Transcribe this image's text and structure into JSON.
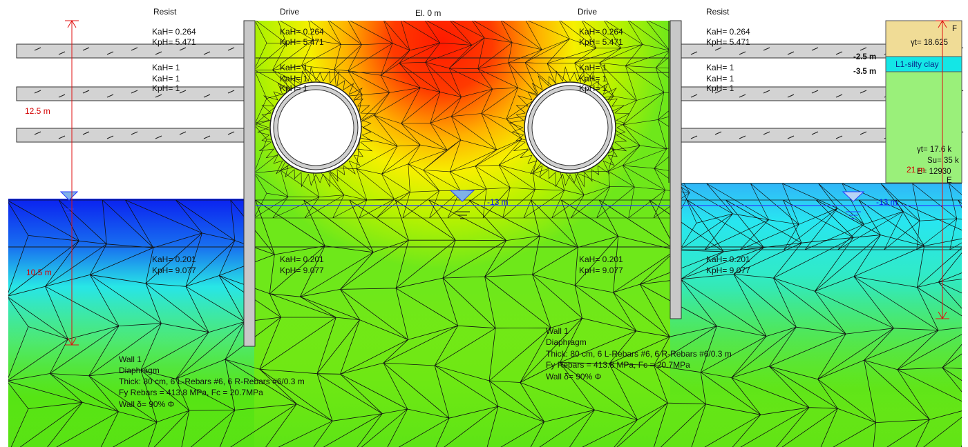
{
  "colors": {
    "hot": "#ff1a00",
    "warm": "#ffd200",
    "mid": "#9cf000",
    "green": "#46dc14",
    "cyan": "#28e6e6",
    "blue": "#0a1ef0",
    "wall": "#c8c8c8",
    "dimension": "#e01010",
    "waterline": "#2a3dff",
    "soil_tan": "#f0dc96",
    "soil_green": "#9af07a",
    "soil_cyan": "#14e6e6"
  },
  "labels": {
    "elevation_top": "El. 0 m",
    "left_resist": "Resist",
    "left_drive": "Drive",
    "right_drive": "Drive",
    "right_resist": "Resist"
  },
  "coefficients": {
    "upper_kah": "KaH= 0.264",
    "upper_kph": "KpH= 5.471",
    "mid_kah": "KaH= 1",
    "mid_kah_overlap": "KaH= 1",
    "mid_kph": "KpH= 1",
    "lower_kah": "KaH= 0.201",
    "lower_kph": "KpH= 9.077"
  },
  "water": {
    "level_label": "-13 m"
  },
  "dimensions": {
    "left_upper": "12.5 m",
    "left_lower": "10.5 m",
    "right": "21 m"
  },
  "right_panel": {
    "top_letter": "F",
    "gamma_top": "γt= 18.625",
    "elev_a": "-2.5 m",
    "elev_b": "-3.5 m",
    "layer_name": "L1-silty clay",
    "gamma_lower": "γt= 17.6 k",
    "su": "Su= 35 k",
    "e_val": "E= 12930",
    "ee": "E"
  },
  "wall_left_note": {
    "line1": "Wall 1",
    "line2": "Diaphragm",
    "line3": "Thick: 80 cm, 6 L-Rebars #6, 6 R-Rebars #6/0.3 m",
    "line4": "Fy Rebars = 413.8 MPa, Fc = 20.7MPa",
    "line5": "Wall δ= 90% Φ"
  },
  "wall_right_note": {
    "line1": "Wall 1",
    "line2": "Diaphragm",
    "line3": "Thick: 80 cm, 6 L-Rebars #6, 6 R-Rebars #6/0.3 m",
    "line4": "Fy Rebars = 413.8 MPa, Fc = 20.7MPa",
    "line5": "Wall δ= 90% Φ"
  }
}
